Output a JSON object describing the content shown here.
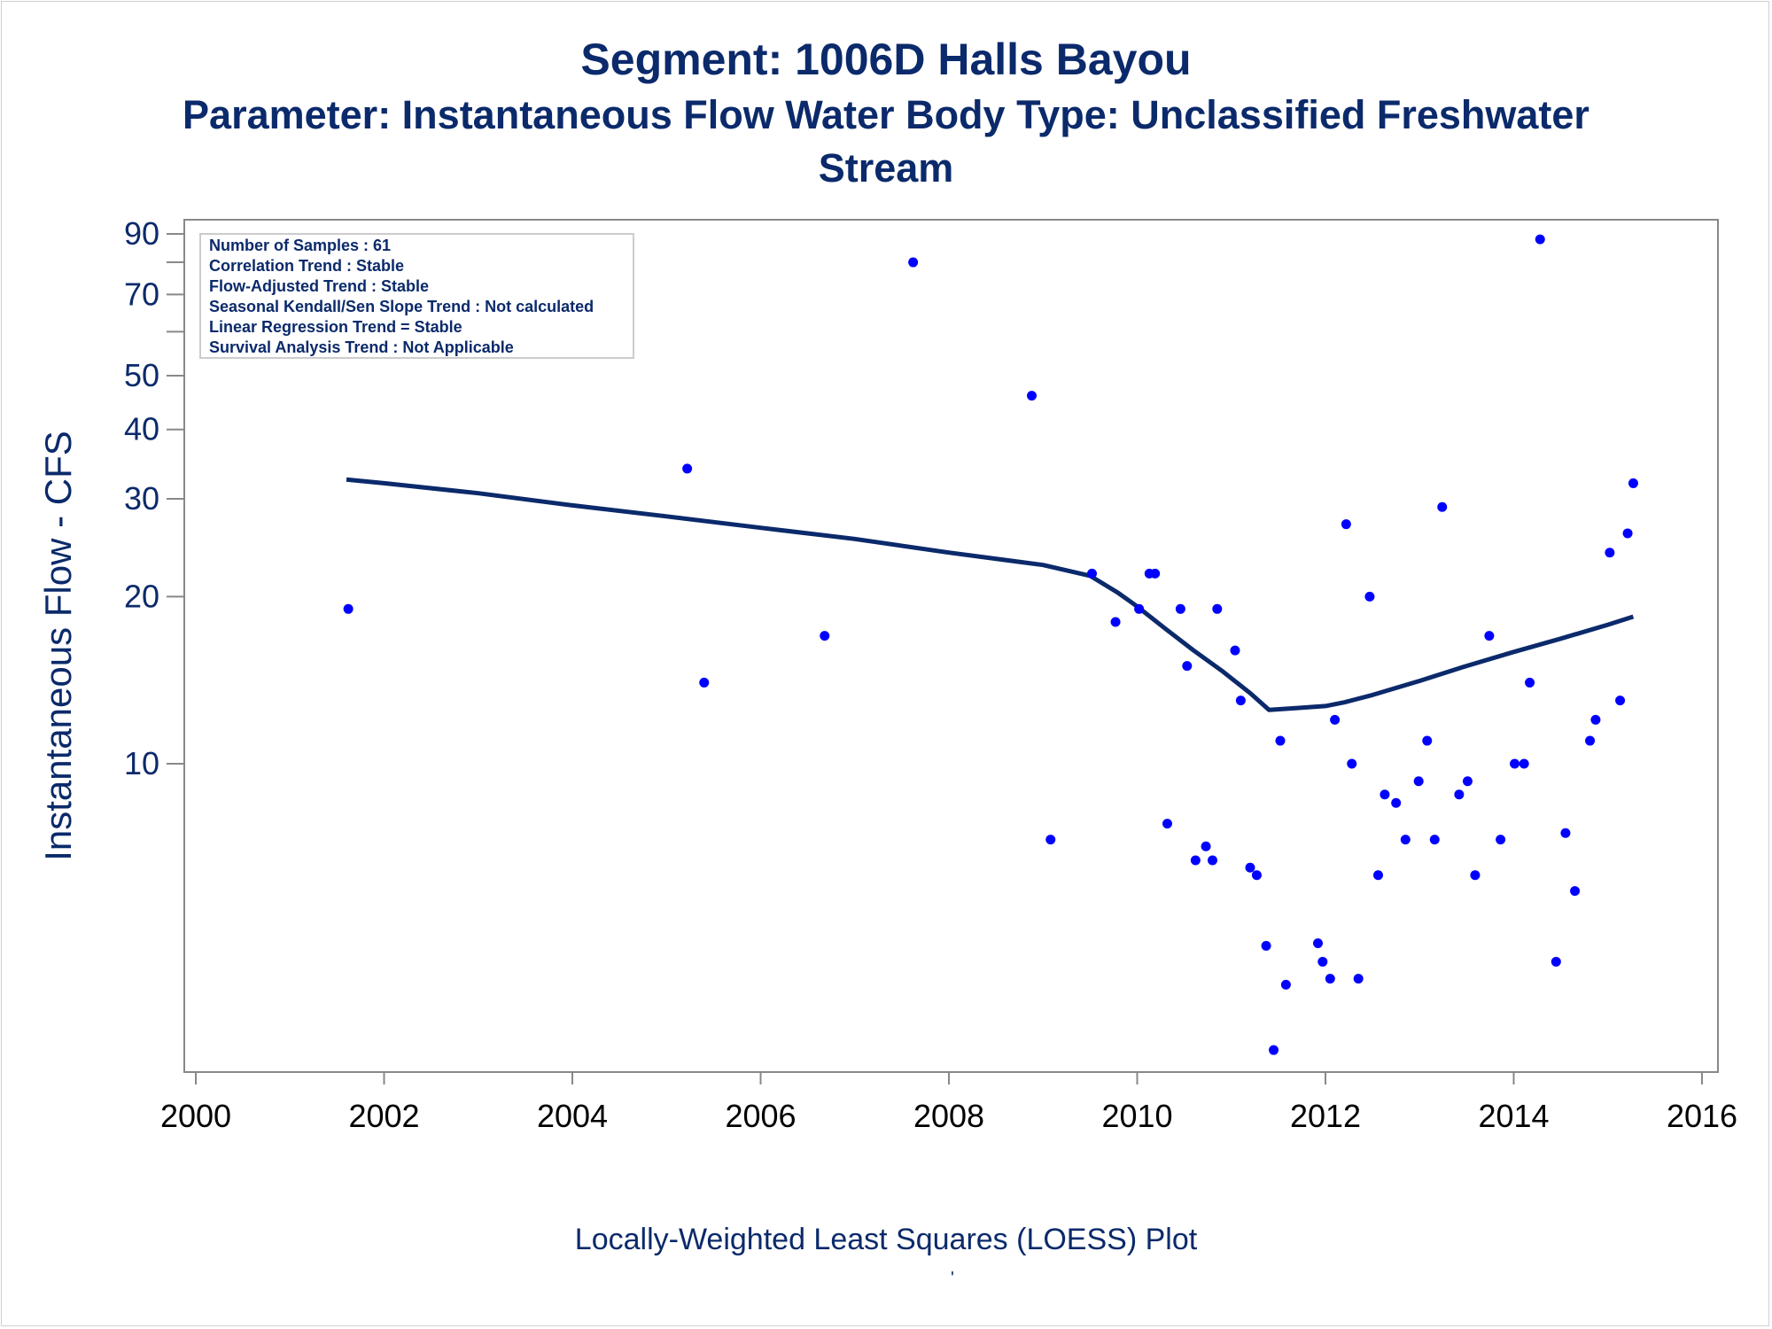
{
  "chart_data": {
    "type": "scatter",
    "title": "Segment: 1006D  Halls Bayou",
    "subtitle_line1": "Parameter: Instantaneous Flow   Water Body Type: Unclassified Freshwater",
    "subtitle_line2": "Stream",
    "ylabel": "Instantaneous Flow - CFS",
    "xlabel": "",
    "footnote": "Locally-Weighted Least Squares (LOESS) Plot",
    "footnote_mark": "'",
    "y_scale": "log",
    "xlim": [
      2000,
      2016
    ],
    "ylim": [
      3.0,
      95
    ],
    "x_ticks": [
      "2000",
      "2002",
      "2004",
      "2006",
      "2008",
      "2010",
      "2012",
      "2014",
      "2016"
    ],
    "y_tick_labels": [
      "10",
      "20",
      "30",
      "40",
      "50",
      "70",
      "90"
    ],
    "y_minor_ticks": [
      60,
      80
    ],
    "grid": false,
    "colors": {
      "text": "#0b2a6b",
      "points": "#0000ff",
      "line": "#0b2a6b",
      "axis": "#888888"
    },
    "stats": [
      "Number of Samples : 61",
      "Correlation Trend : Stable",
      "Flow-Adjusted Trend : Stable",
      "Seasonal Kendall/Sen Slope Trend : Not calculated",
      "Linear Regression Trend = Stable",
      "Survival Analysis Trend : Not Applicable"
    ],
    "series": [
      {
        "type": "scatter",
        "points": [
          [
            2001.62,
            19.0
          ],
          [
            2005.22,
            34.0
          ],
          [
            2005.4,
            14.0
          ],
          [
            2006.68,
            17.0
          ],
          [
            2007.62,
            80.0
          ],
          [
            2008.88,
            46.0
          ],
          [
            2009.08,
            7.3
          ],
          [
            2009.52,
            22.0
          ],
          [
            2009.77,
            18.0
          ],
          [
            2010.02,
            19.0
          ],
          [
            2010.13,
            22.0
          ],
          [
            2010.19,
            22.0
          ],
          [
            2010.32,
            7.8
          ],
          [
            2010.46,
            19.0
          ],
          [
            2010.53,
            15.0
          ],
          [
            2010.62,
            6.7
          ],
          [
            2010.73,
            7.1
          ],
          [
            2010.8,
            6.7
          ],
          [
            2010.85,
            19.0
          ],
          [
            2011.04,
            16.0
          ],
          [
            2011.1,
            13.0
          ],
          [
            2011.2,
            6.5
          ],
          [
            2011.27,
            6.3
          ],
          [
            2011.37,
            4.7
          ],
          [
            2011.45,
            3.05
          ],
          [
            2011.52,
            11.0
          ],
          [
            2011.58,
            4.0
          ],
          [
            2011.92,
            4.75
          ],
          [
            2011.97,
            4.4
          ],
          [
            2012.05,
            4.1
          ],
          [
            2012.1,
            12.0
          ],
          [
            2012.22,
            27.0
          ],
          [
            2012.28,
            10.0
          ],
          [
            2012.35,
            4.1
          ],
          [
            2012.47,
            20.0
          ],
          [
            2012.56,
            6.3
          ],
          [
            2012.63,
            8.8
          ],
          [
            2012.75,
            8.5
          ],
          [
            2012.85,
            7.3
          ],
          [
            2012.99,
            9.3
          ],
          [
            2013.08,
            11.0
          ],
          [
            2013.16,
            7.3
          ],
          [
            2013.24,
            29.0
          ],
          [
            2013.42,
            8.8
          ],
          [
            2013.51,
            9.3
          ],
          [
            2013.59,
            6.3
          ],
          [
            2013.74,
            17.0
          ],
          [
            2013.86,
            7.3
          ],
          [
            2014.01,
            10.0
          ],
          [
            2014.11,
            10.0
          ],
          [
            2014.17,
            14.0
          ],
          [
            2014.28,
            88.0
          ],
          [
            2014.45,
            4.4
          ],
          [
            2014.55,
            7.5
          ],
          [
            2014.65,
            5.9
          ],
          [
            2014.81,
            11.0
          ],
          [
            2014.87,
            12.0
          ],
          [
            2015.02,
            24.0
          ],
          [
            2015.13,
            13.0
          ],
          [
            2015.21,
            26.0
          ],
          [
            2015.27,
            32.0
          ]
        ]
      },
      {
        "type": "line",
        "name": "LOESS",
        "points": [
          [
            2001.6,
            32.5
          ],
          [
            2002.0,
            32.0
          ],
          [
            2003.0,
            30.7
          ],
          [
            2004.0,
            29.2
          ],
          [
            2005.0,
            27.9
          ],
          [
            2006.0,
            26.6
          ],
          [
            2007.0,
            25.4
          ],
          [
            2008.0,
            24.0
          ],
          [
            2009.0,
            22.8
          ],
          [
            2009.5,
            21.8
          ],
          [
            2009.8,
            20.3
          ],
          [
            2010.0,
            19.2
          ],
          [
            2010.3,
            17.5
          ],
          [
            2010.6,
            16.0
          ],
          [
            2010.9,
            14.7
          ],
          [
            2011.2,
            13.4
          ],
          [
            2011.4,
            12.5
          ],
          [
            2011.7,
            12.6
          ],
          [
            2012.0,
            12.7
          ],
          [
            2012.2,
            12.9
          ],
          [
            2012.5,
            13.3
          ],
          [
            2013.0,
            14.1
          ],
          [
            2013.5,
            15.0
          ],
          [
            2014.0,
            15.9
          ],
          [
            2014.5,
            16.8
          ],
          [
            2015.0,
            17.8
          ],
          [
            2015.27,
            18.4
          ]
        ]
      }
    ]
  }
}
